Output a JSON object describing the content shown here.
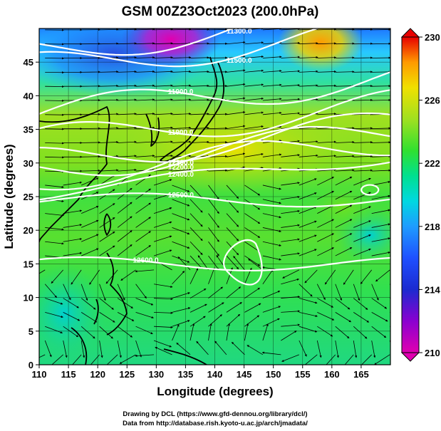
{
  "chart_data": {
    "type": "heatmap",
    "title": "GSM 00Z23Oct2023 (200.0hPa)",
    "xlabel": "Longitude (degrees)",
    "ylabel": "Latitude  (degrees)",
    "xlim": [
      110,
      170
    ],
    "ylim": [
      0,
      50
    ],
    "xticks": [
      "110",
      "115",
      "120",
      "125",
      "130",
      "135",
      "140",
      "145",
      "150",
      "155",
      "160",
      "165"
    ],
    "yticks": [
      "0",
      "5",
      "10",
      "15",
      "20",
      "25",
      "30",
      "35",
      "40",
      "45"
    ],
    "colorbar": {
      "range": [
        210,
        230
      ],
      "ticks": [
        "210",
        "214",
        "218",
        "222",
        "226",
        "230"
      ],
      "colors": [
        "#e000b0",
        "#8a00d0",
        "#1c2ad0",
        "#1e78ff",
        "#00c8e0",
        "#00e090",
        "#30e030",
        "#a0e020",
        "#f0e000",
        "#ff9a00",
        "#e80000"
      ]
    },
    "contours": [
      {
        "label": "11900.0",
        "lat": 40
      },
      {
        "label": "11900.0",
        "lat": 36
      },
      {
        "label": "12100.0",
        "lat": 33
      },
      {
        "label": "12200.0",
        "lat": 31.8
      },
      {
        "label": "12300.0",
        "lat": 30.5
      },
      {
        "label": "12400.0",
        "lat": 28.2
      },
      {
        "label": "12500.0",
        "lat": 24.5
      },
      {
        "label": "12600.0",
        "lat": 15
      },
      {
        "label": "11500.0",
        "lat": 47
      },
      {
        "label": "11300.0",
        "lat": 49.5
      }
    ],
    "credits": [
      "Drawing by DCL (https://www.gfd-dennou.org/library/dcl/)",
      "Data from http://database.rish.kyoto-u.ac.jp/arch/jmadata/"
    ]
  }
}
